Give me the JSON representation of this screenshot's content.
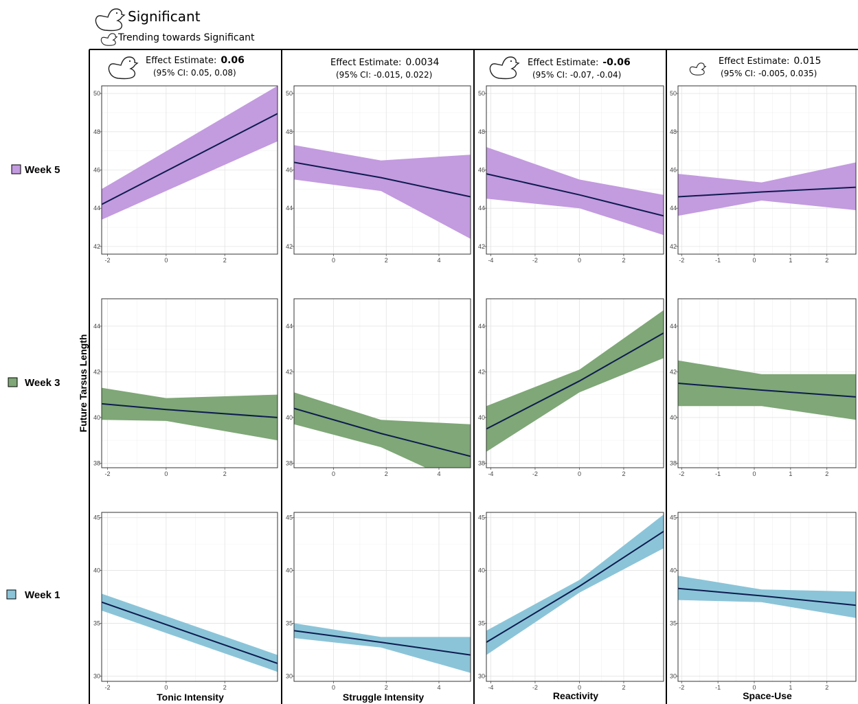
{
  "legend": {
    "significant_label": "Significant",
    "trending_label": "Trending towards Significant",
    "significant_icon": "duck-large-icon",
    "trending_icon": "duck-small-icon"
  },
  "ylabel": "Future Tarsus Length",
  "rows": [
    {
      "label": "Week 5",
      "color": "#c39bdf"
    },
    {
      "label": "Week 3",
      "color": "#7fa777"
    },
    {
      "label": "Week 1",
      "color": "#8bc4d8"
    }
  ],
  "line_color": "#0d1b4f",
  "columns": [
    {
      "xlabel": "Tonic Intensity",
      "effect_prefix": "Effect Estimate:",
      "effect_value": "0.06",
      "effect_bold": true,
      "ci": "(95% CI: 0.05, 0.08)",
      "icon": "large"
    },
    {
      "xlabel": "Struggle Intensity",
      "effect_prefix": "Effect Estimate:",
      "effect_value": "0.0034",
      "effect_bold": false,
      "ci": "(95% CI: -0.015, 0.022)",
      "icon": "none"
    },
    {
      "xlabel": "Reactivity",
      "effect_prefix": "Effect Estimate:",
      "effect_value": "-0.06",
      "effect_bold": true,
      "ci": "(95% CI: -0.07, -0.04)",
      "icon": "large"
    },
    {
      "xlabel": "Space-Use",
      "effect_prefix": "Effect Estimate:",
      "effect_value": "0.015",
      "effect_bold": false,
      "ci": "(95% CI: -0.005, 0.035)",
      "icon": "small"
    }
  ],
  "chart_data": {
    "type": "line",
    "ylabel": "Future Tarsus Length",
    "grid": true,
    "panels": [
      {
        "row": "Week 5",
        "column": "Tonic Intensity",
        "xlim": [
          -2.2,
          3.8
        ],
        "xticks": [
          -2,
          0,
          2
        ],
        "ylim": [
          41.6,
          50.4
        ],
        "yticks": [
          42,
          44,
          46,
          48,
          50
        ],
        "x": [
          -2.2,
          3.8
        ],
        "fit": [
          44.2,
          48.95
        ],
        "lower": [
          43.4,
          47.5
        ],
        "upper": [
          45.0,
          50.4
        ]
      },
      {
        "row": "Week 5",
        "column": "Struggle Intensity",
        "xlim": [
          -1.5,
          5.2
        ],
        "xticks": [
          0,
          2,
          4
        ],
        "ylim": [
          41.6,
          50.4
        ],
        "yticks": [
          42,
          44,
          46,
          48,
          50
        ],
        "x": [
          -1.5,
          1.8,
          5.2
        ],
        "fit": [
          46.4,
          45.6,
          44.6
        ],
        "lower": [
          45.5,
          44.9,
          42.4
        ],
        "upper": [
          47.3,
          46.5,
          46.8
        ]
      },
      {
        "row": "Week 5",
        "column": "Reactivity",
        "xlim": [
          -4.2,
          3.8
        ],
        "xticks": [
          -4,
          -2,
          0,
          2
        ],
        "ylim": [
          41.6,
          50.4
        ],
        "yticks": [
          42,
          44,
          46,
          48,
          50
        ],
        "x": [
          -4.2,
          0,
          3.8
        ],
        "fit": [
          45.8,
          44.7,
          43.6
        ],
        "lower": [
          44.5,
          44.0,
          42.6
        ],
        "upper": [
          47.2,
          45.5,
          44.7
        ]
      },
      {
        "row": "Week 5",
        "column": "Space-Use",
        "xlim": [
          -2.1,
          2.8
        ],
        "xticks": [
          -2,
          -1,
          0,
          1,
          2
        ],
        "ylim": [
          41.6,
          50.4
        ],
        "yticks": [
          42,
          44,
          46,
          48,
          50
        ],
        "x": [
          -2.1,
          0.2,
          2.8
        ],
        "fit": [
          44.6,
          44.85,
          45.1
        ],
        "lower": [
          43.6,
          44.4,
          43.9
        ],
        "upper": [
          45.8,
          45.35,
          46.4
        ]
      },
      {
        "row": "Week 3",
        "column": "Tonic Intensity",
        "xlim": [
          -2.2,
          3.8
        ],
        "xticks": [
          -2,
          0,
          2
        ],
        "ylim": [
          37.8,
          45.2
        ],
        "yticks": [
          38,
          40,
          42,
          44
        ],
        "x": [
          -2.2,
          0,
          3.8
        ],
        "fit": [
          40.6,
          40.35,
          40.0
        ],
        "lower": [
          39.9,
          39.85,
          39.0
        ],
        "upper": [
          41.3,
          40.85,
          41.0
        ]
      },
      {
        "row": "Week 3",
        "column": "Struggle Intensity",
        "xlim": [
          -1.5,
          5.2
        ],
        "xticks": [
          0,
          2,
          4
        ],
        "ylim": [
          37.8,
          45.2
        ],
        "yticks": [
          38,
          40,
          42,
          44
        ],
        "x": [
          -1.5,
          1.8,
          5.2
        ],
        "fit": [
          40.4,
          39.3,
          38.3
        ],
        "lower": [
          39.7,
          38.7,
          36.9
        ],
        "upper": [
          41.1,
          39.9,
          39.7
        ]
      },
      {
        "row": "Week 3",
        "column": "Reactivity",
        "xlim": [
          -4.2,
          3.8
        ],
        "xticks": [
          -4,
          -2,
          0,
          2
        ],
        "ylim": [
          37.8,
          45.2
        ],
        "yticks": [
          38,
          40,
          42,
          44
        ],
        "x": [
          -4.2,
          0,
          3.8
        ],
        "fit": [
          39.5,
          41.6,
          43.7
        ],
        "lower": [
          38.5,
          41.1,
          42.6
        ],
        "upper": [
          40.5,
          42.1,
          44.7
        ]
      },
      {
        "row": "Week 3",
        "column": "Space-Use",
        "xlim": [
          -2.1,
          2.8
        ],
        "xticks": [
          -2,
          -1,
          0,
          1,
          2
        ],
        "ylim": [
          37.8,
          45.2
        ],
        "yticks": [
          38,
          40,
          42,
          44
        ],
        "x": [
          -2.1,
          0.2,
          2.8
        ],
        "fit": [
          41.5,
          41.2,
          40.9
        ],
        "lower": [
          40.5,
          40.5,
          39.9
        ],
        "upper": [
          42.5,
          41.9,
          41.9
        ]
      },
      {
        "row": "Week 1",
        "column": "Tonic Intensity",
        "xlim": [
          -2.2,
          3.8
        ],
        "xticks": [
          -2,
          0,
          2
        ],
        "ylim": [
          29.5,
          45.5
        ],
        "yticks": [
          30,
          35,
          40,
          45
        ],
        "x": [
          -2.2,
          3.8
        ],
        "fit": [
          37.0,
          31.2
        ],
        "lower": [
          36.2,
          30.4
        ],
        "upper": [
          37.8,
          32.0
        ]
      },
      {
        "row": "Week 1",
        "column": "Struggle Intensity",
        "xlim": [
          -1.5,
          5.2
        ],
        "xticks": [
          0,
          2,
          4
        ],
        "ylim": [
          29.5,
          45.5
        ],
        "yticks": [
          30,
          35,
          40,
          45
        ],
        "x": [
          -1.5,
          1.8,
          5.2
        ],
        "fit": [
          34.3,
          33.2,
          32.0
        ],
        "lower": [
          33.6,
          32.7,
          30.3
        ],
        "upper": [
          35.0,
          33.7,
          33.7
        ]
      },
      {
        "row": "Week 1",
        "column": "Reactivity",
        "xlim": [
          -4.2,
          3.8
        ],
        "xticks": [
          -4,
          -2,
          0,
          2
        ],
        "ylim": [
          29.5,
          45.5
        ],
        "yticks": [
          30,
          35,
          40,
          45
        ],
        "x": [
          -4.2,
          0,
          3.8
        ],
        "fit": [
          33.2,
          38.5,
          43.7
        ],
        "lower": [
          32.0,
          37.9,
          42.1
        ],
        "upper": [
          34.3,
          39.1,
          45.3
        ]
      },
      {
        "row": "Week 1",
        "column": "Space-Use",
        "xlim": [
          -2.1,
          2.8
        ],
        "xticks": [
          -2,
          -1,
          0,
          1,
          2
        ],
        "ylim": [
          29.5,
          45.5
        ],
        "yticks": [
          30,
          35,
          40,
          45
        ],
        "x": [
          -2.1,
          0.2,
          2.8
        ],
        "fit": [
          38.3,
          37.6,
          36.7
        ],
        "lower": [
          37.2,
          37.0,
          35.5
        ],
        "upper": [
          39.5,
          38.2,
          38.0
        ]
      }
    ]
  }
}
